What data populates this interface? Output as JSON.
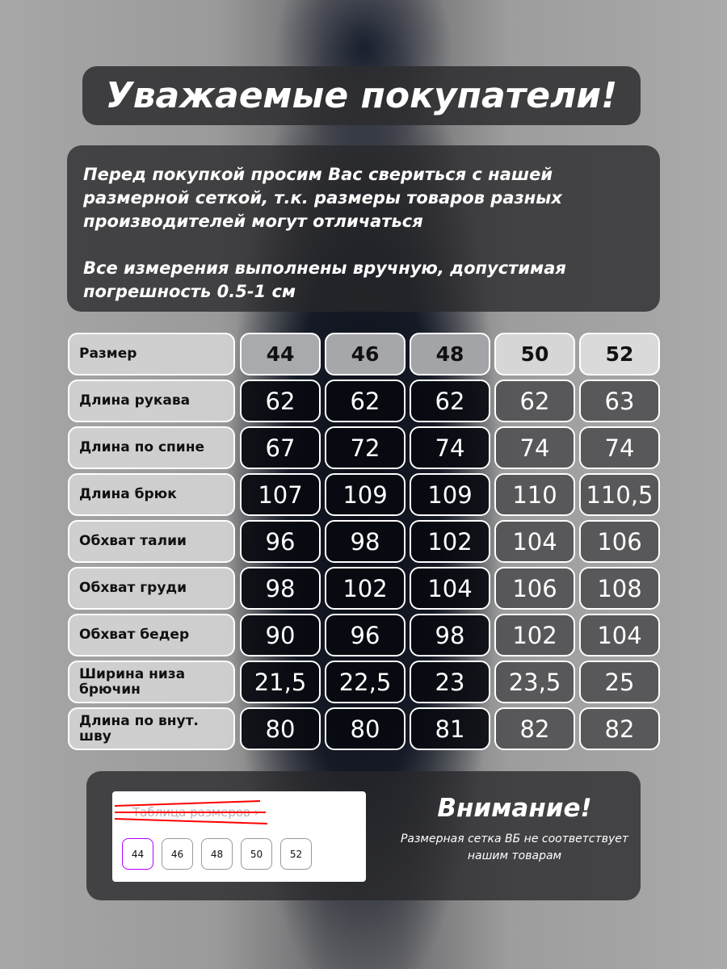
{
  "title": "Уважаемые покупатели!",
  "intro": {
    "p1": "Перед покупкой просим Вас свериться с нашей размерной сеткой, т.к. размеры товаров разных производителей могут отличаться",
    "p2": "Все измерения выполнены вручную, допустимая погрешность 0.5-1 см"
  },
  "table": {
    "header_label": "Размер",
    "sizes": [
      "44",
      "46",
      "48",
      "50",
      "52"
    ],
    "rows": [
      {
        "label": "Длина рукава",
        "values": [
          "62",
          "62",
          "62",
          "62",
          "63"
        ]
      },
      {
        "label": "Длина по спине",
        "values": [
          "67",
          "72",
          "74",
          "74",
          "74"
        ]
      },
      {
        "label": "Длина брюк",
        "values": [
          "107",
          "109",
          "109",
          "110",
          "110,5"
        ]
      },
      {
        "label": "Обхват талии",
        "values": [
          "96",
          "98",
          "102",
          "104",
          "106"
        ]
      },
      {
        "label": "Обхват груди",
        "values": [
          "98",
          "102",
          "104",
          "106",
          "108"
        ]
      },
      {
        "label": "Обхват бедер",
        "values": [
          "90",
          "96",
          "98",
          "102",
          "104"
        ]
      },
      {
        "label": "Ширина низа брючин",
        "values": [
          "21,5",
          "22,5",
          "23",
          "23,5",
          "25"
        ]
      },
      {
        "label": "Длина по внут. шву",
        "values": [
          "80",
          "80",
          "81",
          "82",
          "82"
        ]
      }
    ]
  },
  "bottom": {
    "crossed_link": "Таблица размеров ›",
    "sizes": [
      "44",
      "46",
      "48",
      "50",
      "52"
    ],
    "selected_size": "44",
    "attention_title": "Внимание!",
    "attention_text": "Размерная сетка ВБ не соответствует нашим товарам"
  },
  "colors": {
    "selected_border": "#b400ff",
    "cross": "#ff0000"
  }
}
